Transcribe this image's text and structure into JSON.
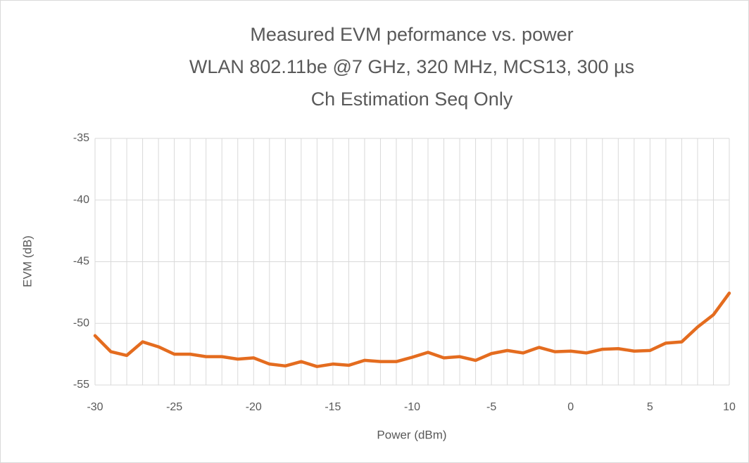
{
  "chart_data": {
    "type": "line",
    "title": [
      "Measured EVM peformance vs. power",
      "WLAN 802.11be @7 GHz, 320 MHz, MCS13, 300 µs",
      "Ch Estimation Seq Only"
    ],
    "xlabel": "Power (dBm)",
    "ylabel": "EVM (dB)",
    "x": [
      -30,
      -29,
      -28,
      -27,
      -26,
      -25,
      -24,
      -23,
      -22,
      -21,
      -20,
      -19,
      -18,
      -17,
      -16,
      -15,
      -14,
      -13,
      -12,
      -11,
      -10,
      -9,
      -8,
      -7,
      -6,
      -5,
      -4,
      -3,
      -2,
      -1,
      0,
      1,
      2,
      3,
      4,
      5,
      6,
      7,
      8,
      9,
      10
    ],
    "series": [
      {
        "name": "EVM",
        "color": "#e46c1f",
        "values": [
          -51.0,
          -52.3,
          -52.6,
          -51.5,
          -51.9,
          -52.5,
          -52.5,
          -52.7,
          -52.7,
          -52.9,
          -52.8,
          -53.3,
          -53.45,
          -53.1,
          -53.5,
          -53.3,
          -53.4,
          -53.0,
          -53.1,
          -53.1,
          -52.75,
          -52.35,
          -52.8,
          -52.7,
          -53.0,
          -52.45,
          -52.2,
          -52.4,
          -51.95,
          -52.3,
          -52.25,
          -52.4,
          -52.1,
          -52.05,
          -52.25,
          -52.2,
          -51.6,
          -51.5,
          -50.3,
          -49.3,
          -47.55
        ]
      }
    ],
    "xlim": [
      -30,
      10
    ],
    "xticks": [
      -30,
      -25,
      -20,
      -15,
      -10,
      -5,
      0,
      5,
      10
    ],
    "ylim": [
      -55,
      -35
    ],
    "yticks": [
      -55,
      -50,
      -45,
      -40,
      -35
    ],
    "grid": true
  }
}
